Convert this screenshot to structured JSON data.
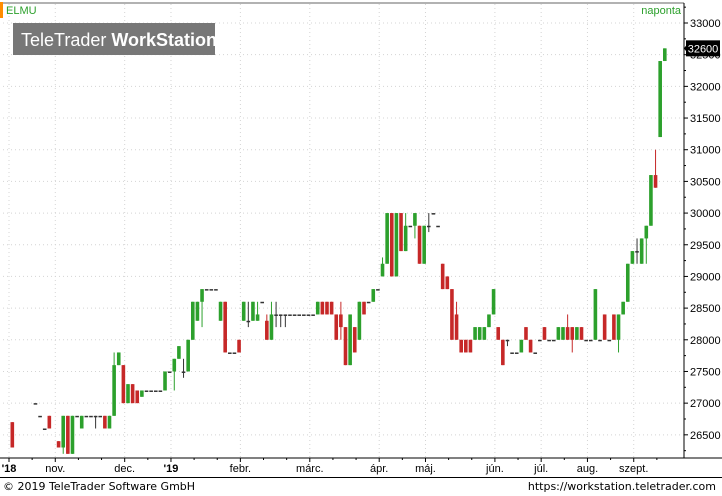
{
  "header": {
    "symbol": "ELMU",
    "interval": "naponta",
    "watermark_regular": "TeleTrader",
    "watermark_bold": "WorkStation"
  },
  "footer": {
    "copyright": "© 2019 TeleTrader Software GmbH",
    "url": "https://workstation.teletrader.com"
  },
  "colors": {
    "up": "#2ca02c",
    "down": "#c62828",
    "neutral": "#333333",
    "grid": "#d4d4d4",
    "accent": "#ff8c00",
    "title": "#2ca02c",
    "badge_bg": "#000000",
    "badge_fg": "#ffffff"
  },
  "chart_data": {
    "type": "ohlc",
    "title": "ELMU",
    "interval": "naponta",
    "ylim": [
      26150,
      33300
    ],
    "yticks": [
      26500,
      27000,
      27500,
      28000,
      28500,
      29000,
      29500,
      30000,
      30500,
      31000,
      31500,
      32000,
      32500,
      33000
    ],
    "x_axis_labels": [
      "'18",
      "nov.",
      "dec.",
      "'19",
      "febr.",
      "márc.",
      "ápr.",
      "máj.",
      "jún.",
      "júl.",
      "aug.",
      "szept."
    ],
    "last_price": 32600,
    "grid": true,
    "weeks": [
      {
        "label": "'18",
        "bars": [
          [
            26700,
            26700,
            26300,
            26300
          ]
        ]
      },
      {
        "label": "",
        "bars": [
          [
            27000,
            27000,
            27000,
            27000
          ],
          [
            26800,
            26800,
            26800,
            26800
          ],
          [
            26600,
            26600,
            26600,
            26600
          ],
          [
            26800,
            26800,
            26600,
            26600
          ]
        ]
      },
      {
        "label": "nov.",
        "bars": [
          [
            26400,
            26400,
            26300,
            26300
          ],
          [
            26300,
            26800,
            26200,
            26800
          ],
          [
            26800,
            26800,
            26200,
            26200
          ],
          [
            26200,
            26800,
            26200,
            26800
          ],
          [
            26800,
            26800,
            26800,
            26800
          ]
        ]
      },
      {
        "label": "",
        "bars": [
          [
            26600,
            26800,
            26600,
            26800
          ],
          [
            26800,
            26800,
            26800,
            26800
          ],
          [
            26800,
            26800,
            26800,
            26800
          ],
          [
            26800,
            26800,
            26600,
            26800
          ],
          [
            26800,
            26800,
            26800,
            26800
          ]
        ]
      },
      {
        "label": "",
        "bars": [
          [
            26800,
            26800,
            26600,
            26600
          ],
          [
            26600,
            26800,
            26600,
            26800
          ],
          [
            26800,
            27800,
            26800,
            27600
          ],
          [
            27600,
            27800,
            27600,
            27800
          ],
          [
            27600,
            27600,
            27000,
            27000
          ]
        ]
      },
      {
        "label": "dec.",
        "bars": [
          [
            27000,
            27300,
            27000,
            27300
          ],
          [
            27300,
            27300,
            27000,
            27000
          ],
          [
            27200,
            27200,
            27000,
            27000
          ],
          [
            27100,
            27200,
            27100,
            27200
          ],
          [
            27200,
            27200,
            27200,
            27200
          ]
        ]
      },
      {
        "label": "",
        "bars": [
          [
            27200,
            27200,
            27200,
            27200
          ],
          [
            27200,
            27200,
            27200,
            27200
          ],
          [
            27200,
            27200,
            27200,
            27200
          ],
          [
            27200,
            27500,
            27200,
            27500
          ],
          [
            27500,
            27500,
            27500,
            27500
          ]
        ]
      },
      {
        "label": "'19",
        "bars": [
          [
            27500,
            27700,
            27200,
            27700
          ],
          [
            27700,
            27900,
            27700,
            27900
          ],
          [
            27500,
            27700,
            27400,
            27500
          ],
          [
            27500,
            28000,
            27500,
            28000
          ],
          [
            28000,
            28600,
            28000,
            28600
          ]
        ]
      },
      {
        "label": "",
        "bars": [
          [
            28300,
            28600,
            28300,
            28600
          ],
          [
            28600,
            28800,
            28200,
            28800
          ],
          [
            28800,
            28800,
            28800,
            28800
          ],
          [
            28800,
            28800,
            28800,
            28800
          ],
          [
            28800,
            28800,
            28800,
            28800
          ]
        ]
      },
      {
        "label": "",
        "bars": [
          [
            28300,
            28600,
            28300,
            28600
          ],
          [
            28600,
            28600,
            27800,
            27800
          ],
          [
            27800,
            27800,
            27800,
            27800
          ],
          [
            27800,
            27800,
            27800,
            27800
          ],
          [
            28000,
            28000,
            27800,
            27800
          ]
        ]
      },
      {
        "label": "febr.",
        "bars": [
          [
            28300,
            28600,
            28300,
            28600
          ],
          [
            28300,
            28600,
            28200,
            28300
          ],
          [
            28300,
            28600,
            28300,
            28600
          ],
          [
            28300,
            28600,
            28300,
            28400
          ],
          [
            28600,
            28600,
            28600,
            28600
          ]
        ]
      },
      {
        "label": "",
        "bars": [
          [
            28300,
            28400,
            28000,
            28000
          ],
          [
            28000,
            28600,
            28000,
            28400
          ],
          [
            28400,
            28600,
            28200,
            28400
          ],
          [
            28400,
            28400,
            28200,
            28400
          ],
          [
            28400,
            28400,
            28200,
            28400
          ]
        ]
      },
      {
        "label": "",
        "bars": [
          [
            28400,
            28400,
            28400,
            28400
          ],
          [
            28400,
            28400,
            28400,
            28400
          ],
          [
            28400,
            28400,
            28400,
            28400
          ],
          [
            28400,
            28400,
            28400,
            28400
          ],
          [
            28400,
            28400,
            28400,
            28400
          ]
        ]
      },
      {
        "label": "márc.",
        "bars": [
          [
            28400,
            28400,
            28400,
            28400
          ],
          [
            28400,
            28600,
            28400,
            28600
          ],
          [
            28600,
            28600,
            28400,
            28400
          ],
          [
            28600,
            28600,
            28400,
            28400
          ],
          [
            28600,
            28600,
            28400,
            28400
          ]
        ]
      },
      {
        "label": "",
        "bars": [
          [
            28400,
            28400,
            28000,
            28000
          ],
          [
            28400,
            28600,
            28000,
            28200
          ],
          [
            28200,
            28200,
            27600,
            27600
          ],
          [
            27600,
            28400,
            27600,
            28400
          ],
          [
            28200,
            28200,
            27800,
            27800
          ]
        ]
      },
      {
        "label": "",
        "bars": [
          [
            28000,
            28600,
            28000,
            28600
          ],
          [
            28600,
            28600,
            28400,
            28400
          ],
          [
            28600,
            28600,
            28600,
            28600
          ],
          [
            28600,
            28800,
            28600,
            28800
          ],
          [
            28800,
            28800,
            28800,
            28800
          ]
        ]
      },
      {
        "label": "ápr.",
        "bars": [
          [
            29000,
            29300,
            29000,
            29200
          ],
          [
            29200,
            30000,
            29200,
            30000
          ],
          [
            30000,
            30000,
            29000,
            29000
          ],
          [
            29000,
            30000,
            29000,
            30000
          ],
          [
            30000,
            30000,
            29400,
            29400
          ]
        ]
      },
      {
        "label": "",
        "bars": [
          [
            29400,
            30000,
            29400,
            29800
          ],
          [
            29800,
            29800,
            29800,
            29800
          ],
          [
            29800,
            30000,
            29600,
            30000
          ],
          [
            29800,
            29800,
            29200,
            29200
          ],
          [
            29200,
            29800,
            29200,
            29800
          ]
        ]
      },
      {
        "label": "máj.",
        "bars": [
          [
            29800,
            30000,
            29700,
            29800
          ],
          [
            30000,
            30000,
            30000,
            30000
          ],
          [
            29800,
            29800,
            29800,
            29800
          ],
          [
            29200,
            29200,
            28800,
            28800
          ],
          [
            29000,
            29000,
            28800,
            28800
          ]
        ]
      },
      {
        "label": "",
        "bars": [
          [
            28800,
            28800,
            28000,
            28000
          ],
          [
            28400,
            28600,
            28000,
            28000
          ],
          [
            28000,
            28000,
            27800,
            27800
          ],
          [
            28000,
            28000,
            27800,
            27800
          ],
          [
            28000,
            28000,
            27800,
            27800
          ]
        ]
      },
      {
        "label": "",
        "bars": [
          [
            28000,
            28200,
            28000,
            28200
          ],
          [
            28000,
            28200,
            28000,
            28200
          ],
          [
            28000,
            28200,
            28000,
            28200
          ],
          [
            28200,
            28400,
            28200,
            28400
          ],
          [
            28400,
            28800,
            28400,
            28800
          ]
        ]
      },
      {
        "label": "jún.",
        "bars": [
          [
            28200,
            28200,
            28000,
            28000
          ],
          [
            28000,
            28000,
            27600,
            27600
          ],
          [
            28000,
            28000,
            27900,
            28000
          ],
          [
            27800,
            27800,
            27800,
            27800
          ],
          [
            27800,
            27800,
            27800,
            27800
          ]
        ]
      },
      {
        "label": "",
        "bars": [
          [
            27800,
            28000,
            27800,
            28000
          ],
          [
            28200,
            28200,
            28000,
            28000
          ],
          [
            28000,
            28000,
            27800,
            27800
          ],
          [
            27800,
            27800,
            27800,
            27800
          ],
          [
            28000,
            28000,
            28000,
            28000
          ]
        ]
      },
      {
        "label": "júl.",
        "bars": [
          [
            28200,
            28200,
            28000,
            28000
          ],
          [
            28000,
            28000,
            28000,
            28000
          ],
          [
            28000,
            28000,
            28000,
            28000
          ],
          [
            28000,
            28200,
            28000,
            28200
          ],
          [
            28000,
            28200,
            28000,
            28200
          ]
        ]
      },
      {
        "label": "",
        "bars": [
          [
            28200,
            28400,
            28000,
            28000
          ],
          [
            28200,
            28200,
            27800,
            28000
          ],
          [
            28000,
            28200,
            28000,
            28200
          ],
          [
            28200,
            28200,
            28000,
            28000
          ],
          [
            28000,
            28000,
            28000,
            28000
          ]
        ]
      },
      {
        "label": "aug.",
        "bars": [
          [
            28000,
            28000,
            28000,
            28000
          ],
          [
            28000,
            28800,
            28000,
            28800
          ],
          [
            28000,
            28000,
            28000,
            28000
          ],
          [
            28400,
            28400,
            28000,
            28000
          ],
          [
            28000,
            28000,
            28000,
            28000
          ]
        ]
      },
      {
        "label": "",
        "bars": [
          [
            28400,
            28400,
            28000,
            28000
          ],
          [
            28000,
            28400,
            27800,
            28400
          ],
          [
            28400,
            28600,
            28400,
            28600
          ],
          [
            28600,
            29200,
            28600,
            29200
          ],
          [
            29200,
            29400,
            29200,
            29400
          ]
        ]
      },
      {
        "label": "szept.",
        "bars": [
          [
            29400,
            29600,
            29200,
            29400
          ],
          [
            29200,
            29600,
            29200,
            29600
          ],
          [
            29600,
            29800,
            29200,
            29800
          ],
          [
            29800,
            30600,
            29800,
            30600
          ],
          [
            30600,
            31000,
            30400,
            30400
          ]
        ]
      },
      {
        "label": "",
        "bars": [
          [
            31200,
            32400,
            31200,
            32400
          ],
          [
            32400,
            32600,
            32400,
            32600
          ]
        ]
      }
    ]
  }
}
